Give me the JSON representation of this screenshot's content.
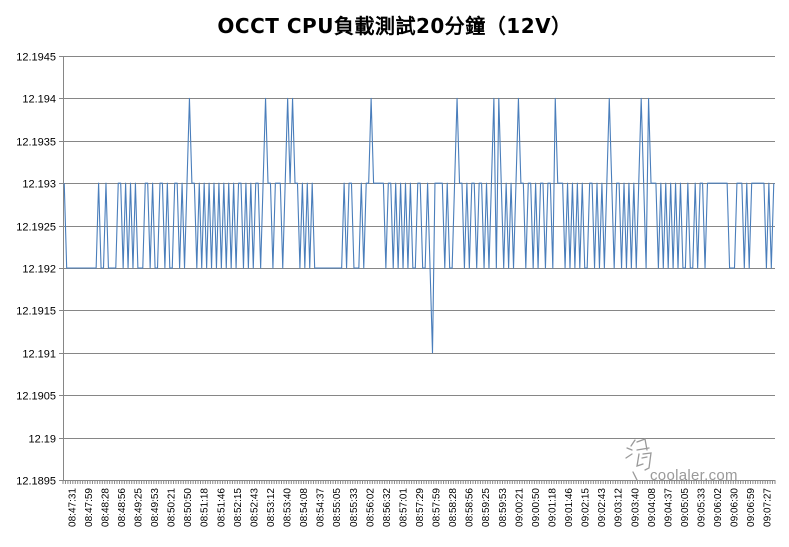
{
  "chart_data": {
    "type": "line",
    "title": "OCCT CPU負載測試20分鐘（12V）",
    "xlabel": "",
    "ylabel": "",
    "ylim": [
      12.1895,
      12.1945
    ],
    "ytick_labels": [
      "12.1945",
      "12.194",
      "12.1935",
      "12.193",
      "12.1925",
      "12.192",
      "12.1915",
      "12.191",
      "12.1905",
      "12.19",
      "12.1895"
    ],
    "ytick_values": [
      12.1945,
      12.194,
      12.1935,
      12.193,
      12.1925,
      12.192,
      12.1915,
      12.191,
      12.1905,
      12.19,
      12.1895
    ],
    "grid": "horizontal",
    "legend": "none",
    "xtick_labels": [
      "08:47:31",
      "08:47:59",
      "08:48:28",
      "08:48:56",
      "08:49:25",
      "08:49:53",
      "08:50:21",
      "08:50:50",
      "08:51:18",
      "08:51:46",
      "08:52:15",
      "08:52:43",
      "08:53:12",
      "08:53:40",
      "08:54:08",
      "08:54:37",
      "08:55:05",
      "08:55:33",
      "08:56:02",
      "08:56:32",
      "08:57:01",
      "08:57:29",
      "08:57:59",
      "08:58:28",
      "08:58:56",
      "08:59:25",
      "08:59:53",
      "09:00:21",
      "09:00:50",
      "09:01:18",
      "09:01:46",
      "09:02:15",
      "09:02:43",
      "09:03:12",
      "09:03:40",
      "09:04:08",
      "09:04:37",
      "09:05:05",
      "09:05:33",
      "09:06:02",
      "09:06:30",
      "09:06:59",
      "09:07:27"
    ],
    "series": [
      {
        "color": "#4a7ebb",
        "values": [
          12.193,
          12.192,
          12.192,
          12.192,
          12.192,
          12.192,
          12.192,
          12.192,
          12.192,
          12.192,
          12.192,
          12.192,
          12.192,
          12.192,
          12.193,
          12.192,
          12.192,
          12.193,
          12.192,
          12.192,
          12.192,
          12.192,
          12.193,
          12.193,
          12.192,
          12.193,
          12.192,
          12.193,
          12.192,
          12.193,
          12.192,
          12.192,
          12.192,
          12.193,
          12.193,
          12.192,
          12.193,
          12.192,
          12.192,
          12.193,
          12.193,
          12.192,
          12.193,
          12.192,
          12.192,
          12.193,
          12.193,
          12.192,
          12.193,
          12.192,
          12.193,
          12.194,
          12.193,
          12.193,
          12.192,
          12.193,
          12.192,
          12.193,
          12.192,
          12.193,
          12.192,
          12.193,
          12.192,
          12.193,
          12.192,
          12.193,
          12.192,
          12.193,
          12.192,
          12.193,
          12.192,
          12.193,
          12.193,
          12.192,
          12.193,
          12.192,
          12.193,
          12.192,
          12.193,
          12.193,
          12.192,
          12.193,
          12.194,
          12.193,
          12.193,
          12.192,
          12.193,
          12.193,
          12.193,
          12.192,
          12.193,
          12.194,
          12.193,
          12.194,
          12.193,
          12.193,
          12.192,
          12.193,
          12.192,
          12.193,
          12.192,
          12.193,
          12.192,
          12.192,
          12.192,
          12.192,
          12.192,
          12.192,
          12.192,
          12.192,
          12.192,
          12.192,
          12.192,
          12.192,
          12.193,
          12.192,
          12.193,
          12.193,
          12.192,
          12.192,
          12.192,
          12.193,
          12.192,
          12.193,
          12.193,
          12.194,
          12.193,
          12.193,
          12.193,
          12.193,
          12.193,
          12.192,
          12.193,
          12.193,
          12.192,
          12.193,
          12.192,
          12.193,
          12.192,
          12.193,
          12.192,
          12.193,
          12.192,
          12.192,
          12.193,
          12.193,
          12.192,
          12.192,
          12.193,
          12.192,
          12.191,
          12.193,
          12.193,
          12.193,
          12.193,
          12.192,
          12.193,
          12.192,
          12.192,
          12.193,
          12.194,
          12.193,
          12.193,
          12.192,
          12.193,
          12.192,
          12.193,
          12.193,
          12.192,
          12.193,
          12.193,
          12.192,
          12.193,
          12.192,
          12.193,
          12.194,
          12.192,
          12.194,
          12.193,
          12.192,
          12.193,
          12.192,
          12.193,
          12.192,
          12.193,
          12.194,
          12.193,
          12.193,
          12.192,
          12.193,
          12.193,
          12.192,
          12.193,
          12.192,
          12.193,
          12.193,
          12.192,
          12.193,
          12.193,
          12.192,
          12.194,
          12.193,
          12.193,
          12.193,
          12.192,
          12.193,
          12.192,
          12.193,
          12.192,
          12.193,
          12.192,
          12.193,
          12.192,
          12.192,
          12.193,
          12.193,
          12.192,
          12.193,
          12.192,
          12.193,
          12.192,
          12.193,
          12.194,
          12.193,
          12.192,
          12.193,
          12.193,
          12.192,
          12.193,
          12.192,
          12.193,
          12.192,
          12.193,
          12.192,
          12.193,
          12.194,
          12.193,
          12.192,
          12.194,
          12.193,
          12.193,
          12.193,
          12.192,
          12.193,
          12.192,
          12.193,
          12.192,
          12.193,
          12.192,
          12.193,
          12.192,
          12.193,
          12.192,
          12.192,
          12.193,
          12.192,
          12.192,
          12.193,
          12.192,
          12.193,
          12.193,
          12.192,
          12.193,
          12.193,
          12.193,
          12.193,
          12.193,
          12.193,
          12.193,
          12.193,
          12.193,
          12.192,
          12.192,
          12.192,
          12.193,
          12.193,
          12.193,
          12.192,
          12.193,
          12.192,
          12.193,
          12.193,
          12.193,
          12.193,
          12.193,
          12.193,
          12.192,
          12.193,
          12.192,
          12.193
        ]
      }
    ]
  },
  "watermark": {
    "text": "coolaler.com"
  }
}
